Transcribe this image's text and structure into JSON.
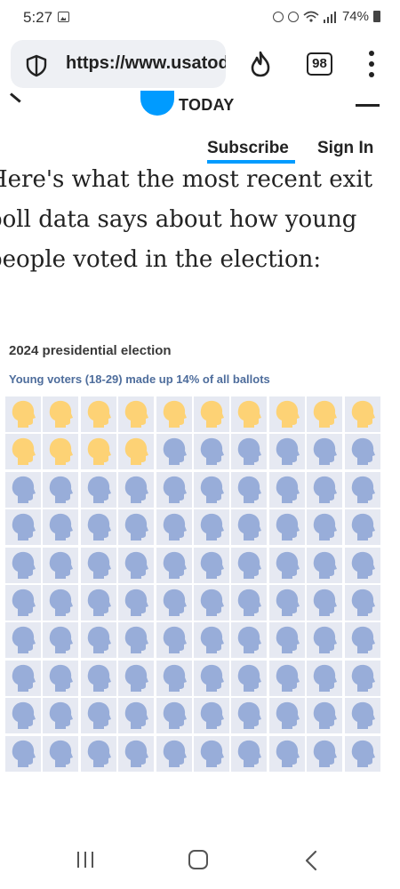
{
  "status_bar": {
    "time": "5:27",
    "battery": "74%",
    "icons": [
      "gallery-icon",
      "alarm-icon",
      "mute-icon",
      "wifi-icon",
      "signal-icon",
      "battery-icon"
    ]
  },
  "browser": {
    "url": "https://www.usatoday.com",
    "tab_count": "98",
    "icons": [
      "shield-icon",
      "fire-icon",
      "tabs-icon",
      "more-icon"
    ]
  },
  "site": {
    "logo_text": "TODAY",
    "subscribe_label": "Subscribe",
    "signin_label": "Sign In",
    "accent_color": "#009bff"
  },
  "article": {
    "lines": [
      "Here's what the most recent exit",
      "poll data says about how young",
      "people voted in the election:"
    ]
  },
  "chart": {
    "title": "2024 presidential election",
    "subtitle": "Young voters (18-29) made up 14% of all ballots"
  },
  "chart_data": {
    "type": "waffle",
    "total": 100,
    "rows": 10,
    "columns": 10,
    "highlighted": 14,
    "highlight_color": "#fdd275",
    "other_color": "#98add9",
    "background_color": "#e6e9f2",
    "title": "2024 presidential election",
    "subtitle": "Young voters (18-29) made up 14% of all ballots"
  }
}
